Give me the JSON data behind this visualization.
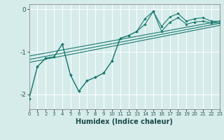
{
  "xlabel": "Humidex (Indice chaleur)",
  "background_color": "#d6eceb",
  "grid_color": "#ffffff",
  "line_color": "#1a7a6e",
  "xlim": [
    0,
    23
  ],
  "ylim": [
    -2.35,
    0.12
  ],
  "yticks": [
    0,
    -1,
    -2
  ],
  "xticks": [
    0,
    1,
    2,
    3,
    4,
    5,
    6,
    7,
    8,
    9,
    10,
    11,
    12,
    13,
    14,
    15,
    16,
    17,
    18,
    19,
    20,
    21,
    22,
    23
  ],
  "line_upper_x": [
    0,
    1,
    2,
    3,
    4,
    5,
    6,
    7,
    8,
    9,
    10,
    11,
    12,
    13,
    14,
    15,
    16,
    17,
    18,
    19,
    20,
    21,
    22,
    23
  ],
  "line_upper_y": [
    -2.1,
    -1.35,
    -1.15,
    -1.12,
    -0.82,
    -1.55,
    -1.93,
    -1.68,
    -1.6,
    -1.5,
    -1.22,
    -0.68,
    -0.62,
    -0.52,
    -0.22,
    -0.05,
    -0.4,
    -0.18,
    -0.1,
    -0.28,
    -0.22,
    -0.2,
    -0.28,
    -0.28
  ],
  "line_lower_x": [
    0,
    1,
    2,
    3,
    4,
    5,
    6,
    7,
    8,
    9,
    10,
    11,
    12,
    13,
    14,
    15,
    16,
    17,
    18,
    19,
    20,
    21,
    22,
    23
  ],
  "line_lower_y": [
    -2.1,
    -1.35,
    -1.15,
    -1.12,
    -0.82,
    -1.55,
    -1.93,
    -1.68,
    -1.6,
    -1.5,
    -1.22,
    -0.68,
    -0.62,
    -0.52,
    -0.35,
    -0.05,
    -0.52,
    -0.3,
    -0.2,
    -0.35,
    -0.3,
    -0.28,
    -0.32,
    -0.32
  ],
  "trend1_x": [
    0,
    23
  ],
  "trend1_y": [
    -1.1,
    -0.28
  ],
  "trend2_x": [
    0,
    23
  ],
  "trend2_y": [
    -1.18,
    -0.33
  ],
  "trend3_x": [
    0,
    23
  ],
  "trend3_y": [
    -1.25,
    -0.38
  ]
}
